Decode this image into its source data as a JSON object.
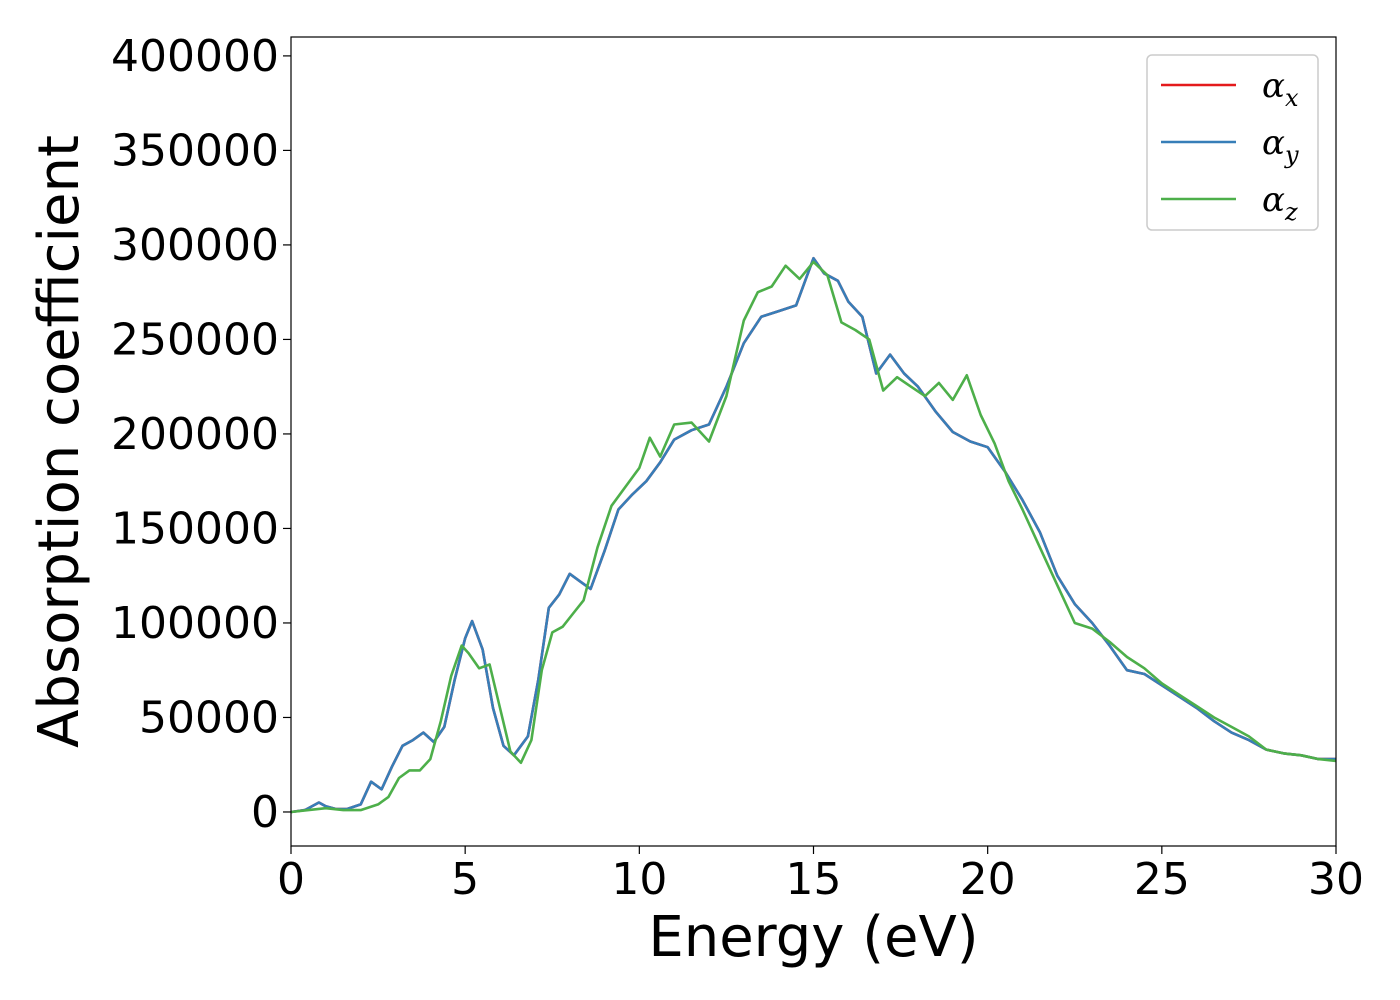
{
  "chart_data": {
    "type": "line",
    "title": "",
    "xlabel": "Energy (eV)",
    "ylabel": "Absorption coefficient",
    "xlim": [
      0,
      30
    ],
    "ylim": [
      -18000,
      410000
    ],
    "xticks": [
      0,
      5,
      10,
      15,
      20,
      25,
      30
    ],
    "yticks": [
      0,
      50000,
      100000,
      150000,
      200000,
      250000,
      300000,
      350000,
      400000
    ],
    "grid": false,
    "legend_position": "top-right",
    "series": [
      {
        "name": "α",
        "subscript": "x",
        "color": "#e41a1c",
        "x": [
          0,
          0.4,
          0.8,
          1.0,
          1.3,
          1.6,
          2.0,
          2.3,
          2.6,
          2.9,
          3.2,
          3.5,
          3.8,
          4.1,
          4.4,
          4.7,
          5.0,
          5.2,
          5.5,
          5.8,
          6.1,
          6.4,
          6.8,
          7.1,
          7.4,
          7.7,
          8.0,
          8.3,
          8.6,
          9.0,
          9.4,
          9.8,
          10.2,
          10.6,
          11.0,
          11.5,
          12.0,
          12.5,
          13.0,
          13.5,
          14.0,
          14.5,
          15.0,
          15.3,
          15.7,
          16.0,
          16.4,
          16.8,
          17.2,
          17.6,
          18.0,
          18.5,
          19.0,
          19.5,
          20.0,
          20.5,
          21.0,
          21.5,
          22.0,
          22.5,
          23.0,
          23.5,
          24.0,
          24.5,
          25.0,
          25.5,
          26.0,
          26.5,
          27.0,
          27.5,
          28.0,
          28.5,
          29.0,
          29.5,
          30.0
        ],
        "y": [
          0,
          1000,
          5000,
          3000,
          1500,
          1500,
          4000,
          16000,
          12000,
          24000,
          35000,
          38000,
          42000,
          37000,
          45000,
          70000,
          92000,
          101000,
          86000,
          55000,
          35000,
          30000,
          40000,
          70000,
          108000,
          115000,
          126000,
          122000,
          118000,
          138000,
          160000,
          168000,
          175000,
          185000,
          197000,
          202000,
          205000,
          225000,
          248000,
          262000,
          265000,
          268000,
          293000,
          285000,
          281000,
          270000,
          262000,
          232000,
          242000,
          232000,
          225000,
          212000,
          201000,
          196000,
          193000,
          180000,
          165000,
          148000,
          125000,
          110000,
          100000,
          88000,
          75000,
          73000,
          67000,
          61000,
          55000,
          48000,
          42000,
          38000,
          33000,
          31000,
          30000,
          28000,
          28000
        ]
      },
      {
        "name": "α",
        "subscript": "y",
        "color": "#377eb8",
        "x": [
          0,
          0.4,
          0.8,
          1.0,
          1.3,
          1.6,
          2.0,
          2.3,
          2.6,
          2.9,
          3.2,
          3.5,
          3.8,
          4.1,
          4.4,
          4.7,
          5.0,
          5.2,
          5.5,
          5.8,
          6.1,
          6.4,
          6.8,
          7.1,
          7.4,
          7.7,
          8.0,
          8.3,
          8.6,
          9.0,
          9.4,
          9.8,
          10.2,
          10.6,
          11.0,
          11.5,
          12.0,
          12.5,
          13.0,
          13.5,
          14.0,
          14.5,
          15.0,
          15.3,
          15.7,
          16.0,
          16.4,
          16.8,
          17.2,
          17.6,
          18.0,
          18.5,
          19.0,
          19.5,
          20.0,
          20.5,
          21.0,
          21.5,
          22.0,
          22.5,
          23.0,
          23.5,
          24.0,
          24.5,
          25.0,
          25.5,
          26.0,
          26.5,
          27.0,
          27.5,
          28.0,
          28.5,
          29.0,
          29.5,
          30.0
        ],
        "y": [
          0,
          1000,
          5000,
          3000,
          1500,
          1500,
          4000,
          16000,
          12000,
          24000,
          35000,
          38000,
          42000,
          37000,
          45000,
          70000,
          92000,
          101000,
          86000,
          55000,
          35000,
          30000,
          40000,
          70000,
          108000,
          115000,
          126000,
          122000,
          118000,
          138000,
          160000,
          168000,
          175000,
          185000,
          197000,
          202000,
          205000,
          225000,
          248000,
          262000,
          265000,
          268000,
          293000,
          285000,
          281000,
          270000,
          262000,
          232000,
          242000,
          232000,
          225000,
          212000,
          201000,
          196000,
          193000,
          180000,
          165000,
          148000,
          125000,
          110000,
          100000,
          88000,
          75000,
          73000,
          67000,
          61000,
          55000,
          48000,
          42000,
          38000,
          33000,
          31000,
          30000,
          28000,
          28000
        ]
      },
      {
        "name": "α",
        "subscript": "z",
        "color": "#4daf4a",
        "x": [
          0,
          0.5,
          1.0,
          1.5,
          2.0,
          2.5,
          2.8,
          3.1,
          3.4,
          3.7,
          4.0,
          4.3,
          4.6,
          4.9,
          5.1,
          5.4,
          5.7,
          6.0,
          6.3,
          6.6,
          6.9,
          7.2,
          7.5,
          7.8,
          8.1,
          8.4,
          8.8,
          9.2,
          9.6,
          10.0,
          10.3,
          10.6,
          11.0,
          11.5,
          12.0,
          12.5,
          13.0,
          13.4,
          13.8,
          14.2,
          14.6,
          15.0,
          15.4,
          15.8,
          16.2,
          16.6,
          17.0,
          17.4,
          17.8,
          18.2,
          18.6,
          19.0,
          19.4,
          19.8,
          20.2,
          20.6,
          21.0,
          21.5,
          22.0,
          22.5,
          23.0,
          23.5,
          24.0,
          24.5,
          25.0,
          25.5,
          26.0,
          26.5,
          27.0,
          27.5,
          28.0,
          28.5,
          29.0,
          29.5,
          30.0
        ],
        "y": [
          0,
          1000,
          2000,
          1000,
          1000,
          4000,
          8000,
          18000,
          22000,
          22000,
          28000,
          48000,
          72000,
          88000,
          84000,
          76000,
          78000,
          55000,
          32000,
          26000,
          38000,
          75000,
          95000,
          98000,
          105000,
          112000,
          140000,
          162000,
          172000,
          182000,
          198000,
          188000,
          205000,
          206000,
          196000,
          220000,
          260000,
          275000,
          278000,
          289000,
          282000,
          291000,
          284000,
          259000,
          255000,
          250000,
          223000,
          230000,
          225000,
          220000,
          227000,
          218000,
          231000,
          210000,
          195000,
          175000,
          160000,
          140000,
          120000,
          100000,
          97000,
          90000,
          82000,
          76000,
          68000,
          62000,
          56000,
          50000,
          45000,
          40000,
          33000,
          31000,
          30000,
          28000,
          27000
        ]
      }
    ]
  }
}
